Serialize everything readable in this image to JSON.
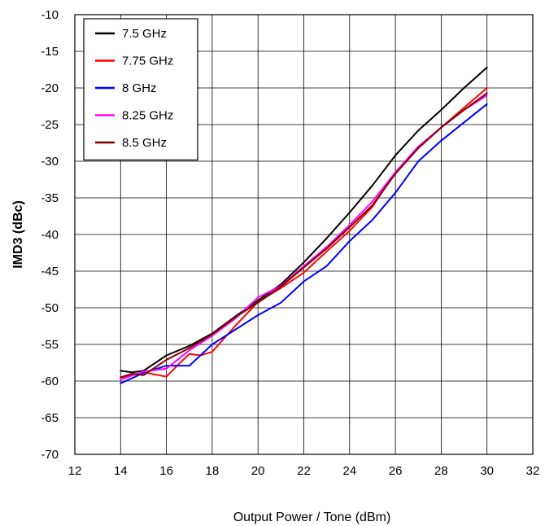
{
  "chart_data": {
    "type": "line",
    "title": "",
    "xlabel": "Output Power / Tone (dBm)",
    "ylabel": "IMD3 (dBc)",
    "xlim": [
      12,
      32
    ],
    "ylim": [
      -70,
      -10
    ],
    "xticks": [
      12,
      14,
      16,
      18,
      20,
      22,
      24,
      26,
      28,
      30,
      32
    ],
    "yticks": [
      -10,
      -15,
      -20,
      -25,
      -30,
      -35,
      -40,
      -45,
      -50,
      -55,
      -60,
      -65,
      -70
    ],
    "grid": true,
    "legend_position": "top-left",
    "series": [
      {
        "name": "7.5 GHz",
        "color": "#000000",
        "x": [
          14,
          14.5,
          15,
          16,
          17,
          18,
          19,
          20,
          21,
          22,
          23,
          24,
          25,
          26,
          27,
          28,
          29,
          30
        ],
        "y": [
          -58.6,
          -58.8,
          -58.6,
          -56.5,
          -55.2,
          -53.5,
          -51.2,
          -49.0,
          -46.8,
          -43.8,
          -40.5,
          -37.0,
          -33.3,
          -29.2,
          -25.8,
          -23.0,
          -20.0,
          -17.2
        ]
      },
      {
        "name": "7.75 GHz",
        "color": "#ff0000",
        "x": [
          14,
          15,
          16,
          16.5,
          17,
          17.5,
          18,
          19,
          20,
          21,
          22,
          23,
          24,
          25,
          26,
          27,
          28,
          29,
          30
        ],
        "y": [
          -59.5,
          -58.8,
          -59.4,
          -57.8,
          -56.3,
          -56.5,
          -56.0,
          -52.5,
          -49.2,
          -47.3,
          -45.2,
          -42.3,
          -39.5,
          -36.2,
          -31.5,
          -28.2,
          -25.4,
          -22.7,
          -20.0
        ]
      },
      {
        "name": "8 GHz",
        "color": "#0000ff",
        "x": [
          14,
          15,
          16,
          17,
          18,
          19,
          20,
          21,
          22,
          23,
          24,
          25,
          26,
          27,
          28,
          29,
          30
        ],
        "y": [
          -60.3,
          -58.9,
          -57.9,
          -57.9,
          -55.0,
          -53.0,
          -51.0,
          -49.3,
          -46.4,
          -44.3,
          -40.9,
          -38.0,
          -34.3,
          -30.0,
          -27.2,
          -24.7,
          -22.2
        ]
      },
      {
        "name": "8.25 GHz",
        "color": "#ff00ff",
        "x": [
          14,
          15,
          16,
          17,
          18,
          19,
          20,
          21,
          22,
          23,
          24,
          25,
          26,
          27,
          28,
          29,
          30
        ],
        "y": [
          -59.8,
          -58.7,
          -58.3,
          -55.8,
          -53.8,
          -51.5,
          -48.6,
          -47.0,
          -44.3,
          -41.7,
          -38.7,
          -35.5,
          -31.5,
          -28.0,
          -25.4,
          -23.0,
          -21.0
        ]
      },
      {
        "name": "8.5 GHz",
        "color": "#800000",
        "x": [
          14,
          14.5,
          15,
          16,
          17,
          18,
          19,
          20,
          21,
          22,
          23,
          24,
          25,
          26,
          27,
          28,
          29,
          30
        ],
        "y": [
          -59.5,
          -59.0,
          -59.2,
          -57.1,
          -55.5,
          -53.6,
          -51.3,
          -49.3,
          -47.1,
          -44.5,
          -41.9,
          -39.0,
          -36.0,
          -31.7,
          -28.2,
          -25.4,
          -23.0,
          -20.7
        ]
      }
    ]
  }
}
